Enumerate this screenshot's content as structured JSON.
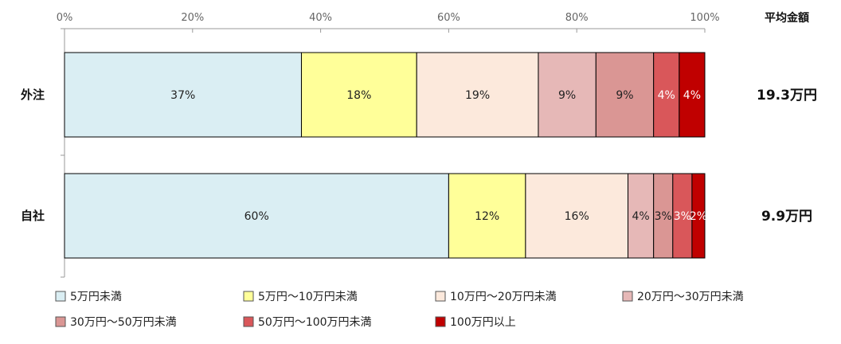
{
  "chart_data": {
    "type": "bar",
    "orientation": "horizontal",
    "stacked": true,
    "x_ticks": [
      "0%",
      "20%",
      "40%",
      "60%",
      "80%",
      "100%"
    ],
    "xlim": [
      0,
      100
    ],
    "categories": [
      "外注",
      "自社"
    ],
    "series": [
      {
        "name": "5万円未満",
        "color": "#daeef3",
        "values": [
          37,
          60
        ],
        "labels": [
          "37%",
          "60%"
        ]
      },
      {
        "name": "5万円～10万円未満",
        "color": "#ffff99",
        "values": [
          18,
          12
        ],
        "labels": [
          "18%",
          "12%"
        ]
      },
      {
        "name": "10万円～20万円未満",
        "color": "#fce9dc",
        "values": [
          19,
          16
        ],
        "labels": [
          "19%",
          "16%"
        ]
      },
      {
        "name": "20万円～30万円未満",
        "color": "#e6b8b7",
        "values": [
          9,
          4
        ],
        "labels": [
          "9%",
          "4%"
        ]
      },
      {
        "name": "30万円～50万円未満",
        "color": "#da9694",
        "values": [
          9,
          3
        ],
        "labels": [
          "9%",
          "3%"
        ]
      },
      {
        "name": "50万円～100万円未満",
        "color": "#d9575a",
        "values": [
          4,
          3
        ],
        "labels": [
          "4%",
          "3%"
        ]
      },
      {
        "name": "100万円以上",
        "color": "#c00000",
        "values": [
          4,
          2
        ],
        "labels": [
          "4%",
          "2%"
        ]
      }
    ],
    "average_header": "平均金額",
    "averages": [
      "19.3万円",
      "9.9万円"
    ],
    "grid": false,
    "legend_position": "bottom"
  }
}
